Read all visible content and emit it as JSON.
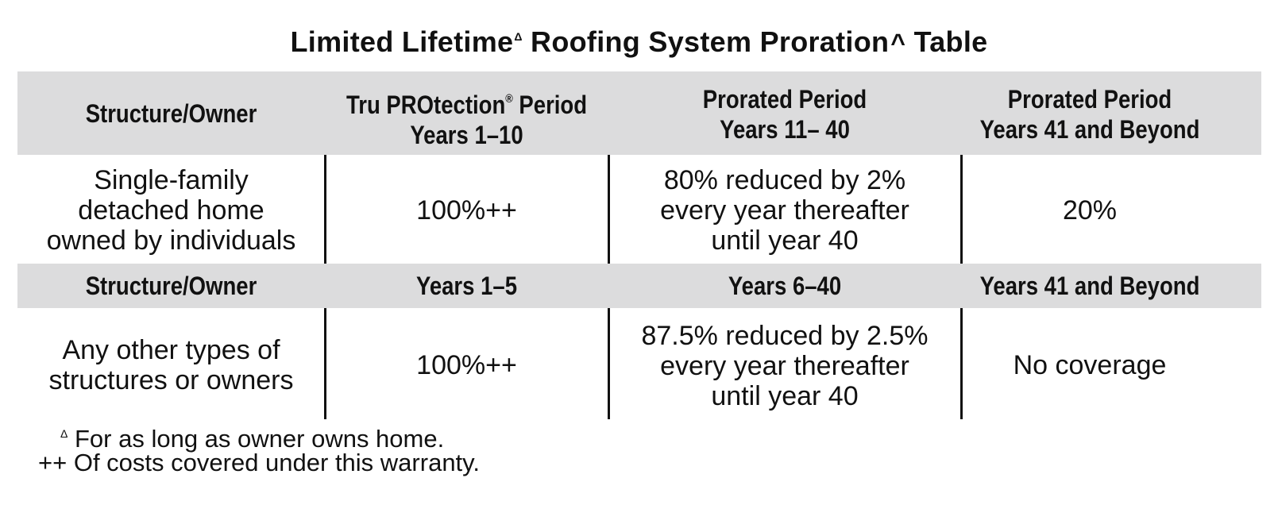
{
  "title": {
    "part1": "Limited Lifetime",
    "mark1": "Δ",
    "part2": "Roofing System Proration",
    "mark2": "^",
    "part3": "Table"
  },
  "header1": {
    "col1": "Structure/Owner",
    "col2_line1_a": "Tru PROtection",
    "col2_reg": "®",
    "col2_line1_b": " Period",
    "col2_line2": "Years 1–10",
    "col3_line1": "Prorated Period",
    "col3_line2": "Years 11– 40",
    "col4_line1": "Prorated Period",
    "col4_line2": "Years 41 and Beyond"
  },
  "row1": {
    "col1_line1": "Single-family",
    "col1_line2": "detached home",
    "col1_line3": "owned by individuals",
    "col2": "100%++",
    "col3_line1": "80% reduced by 2%",
    "col3_line2": "every year thereafter",
    "col3_line3": "until year 40",
    "col4": "20%"
  },
  "header2": {
    "col1": "Structure/Owner",
    "col2": "Years 1–5",
    "col3": "Years 6–40",
    "col4": "Years 41 and Beyond"
  },
  "row2": {
    "col1_line1": "Any other types of",
    "col1_line2": "structures or owners",
    "col2": "100%++",
    "col3_line1": "87.5% reduced by 2.5%",
    "col3_line2": "every year thereafter",
    "col3_line3": "until year 40",
    "col4": "No coverage"
  },
  "footnotes": {
    "note1_symbol": "Δ",
    "note1_text": "For as long as owner owns home.",
    "note2_symbol": "++",
    "note2_text": "Of costs covered under this warranty."
  }
}
